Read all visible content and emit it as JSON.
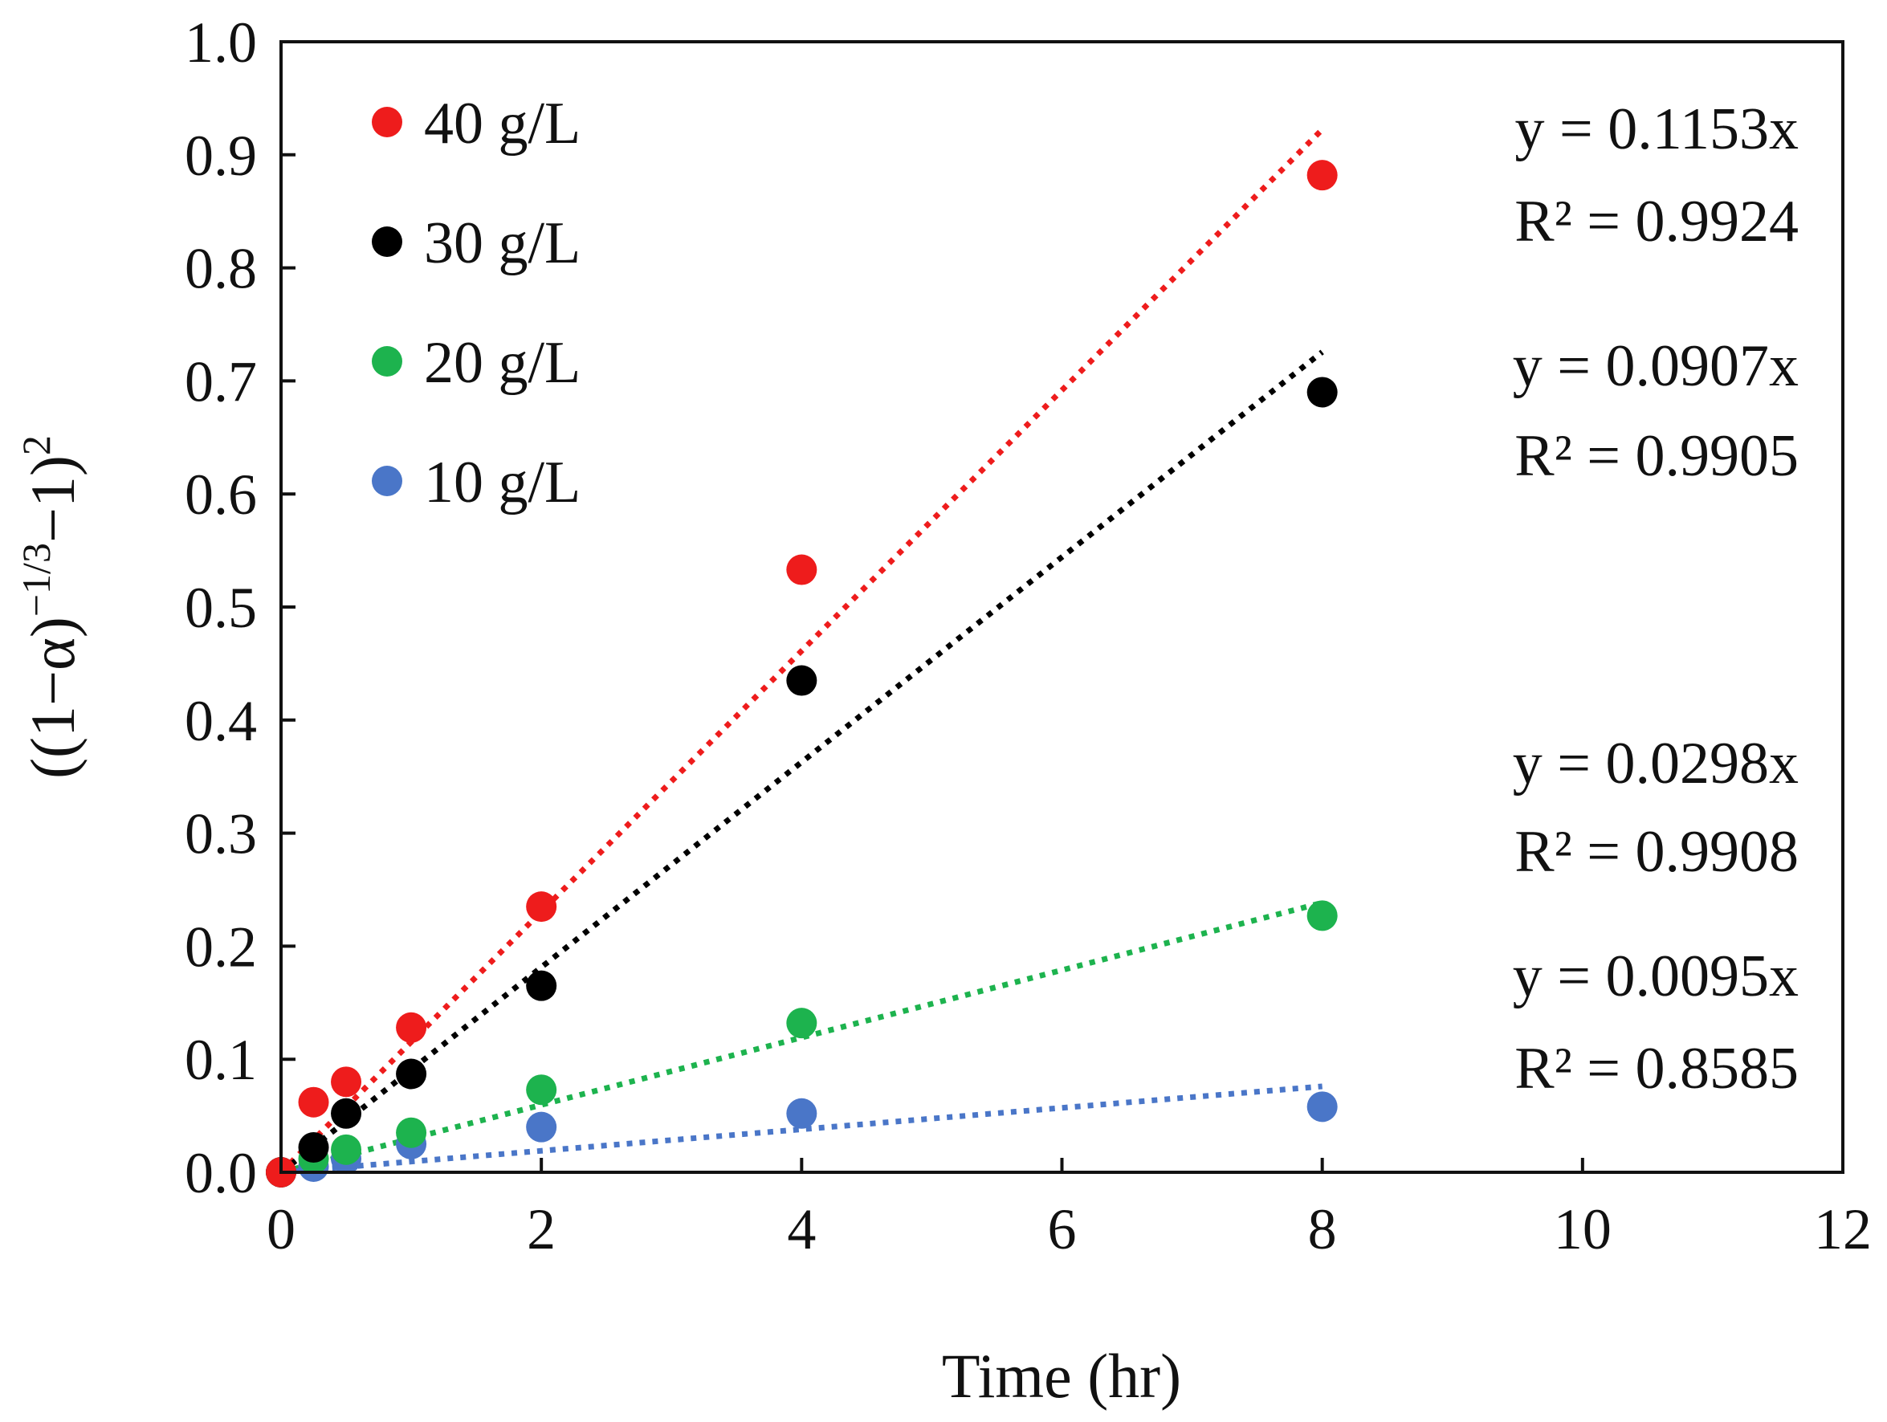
{
  "chart_data": {
    "type": "scatter",
    "title": "",
    "xlabel": "Time (hr)",
    "ylabel": {
      "open": "((1−α)",
      "exponent": "−1/3",
      "middle": "−1)",
      "power": "2"
    },
    "xlim": [
      0,
      12
    ],
    "ylim": [
      0,
      1.0
    ],
    "x_ticks": [
      "0",
      "2",
      "4",
      "6",
      "8",
      "10",
      "12"
    ],
    "y_ticks": [
      "0.0",
      "0.1",
      "0.2",
      "0.3",
      "0.4",
      "0.5",
      "0.6",
      "0.7",
      "0.8",
      "0.9",
      "1.0"
    ],
    "grid": false,
    "legend_position": "top-left",
    "series": [
      {
        "name": "40 g/L",
        "color": "#ee1c1c",
        "x": [
          0,
          0.25,
          0.5,
          1,
          2,
          4,
          8
        ],
        "y": [
          0.0,
          0.062,
          0.08,
          0.128,
          0.235,
          0.533,
          0.882
        ],
        "trendline": {
          "slope": 0.1153,
          "x_range": [
            0,
            8
          ]
        },
        "equation": "y = 0.1153x",
        "r2": "R² = 0.9924"
      },
      {
        "name": "30 g/L",
        "color": "#000000",
        "x": [
          0,
          0.25,
          0.5,
          1,
          2,
          4,
          8
        ],
        "y": [
          0.0,
          0.022,
          0.052,
          0.087,
          0.165,
          0.435,
          0.69
        ],
        "trendline": {
          "slope": 0.0907,
          "x_range": [
            0,
            8
          ]
        },
        "equation": "y = 0.0907x",
        "r2": "R² = 0.9905"
      },
      {
        "name": "20 g/L",
        "color": "#1db34e",
        "x": [
          0,
          0.25,
          0.5,
          1,
          2,
          4,
          8
        ],
        "y": [
          0.0,
          0.012,
          0.02,
          0.035,
          0.073,
          0.132,
          0.227
        ],
        "trendline": {
          "slope": 0.0298,
          "x_range": [
            0,
            8
          ]
        },
        "equation": "y = 0.0298x",
        "r2": "R² = 0.9908"
      },
      {
        "name": "10 g/L",
        "color": "#4a76c8",
        "x": [
          0,
          0.25,
          0.5,
          1,
          2,
          4,
          8
        ],
        "y": [
          0.0,
          0.005,
          0.012,
          0.025,
          0.04,
          0.052,
          0.058
        ],
        "trendline": {
          "slope": 0.0095,
          "x_range": [
            0,
            8
          ]
        },
        "equation": "y = 0.0095x",
        "r2": "R² = 0.8585"
      }
    ]
  }
}
